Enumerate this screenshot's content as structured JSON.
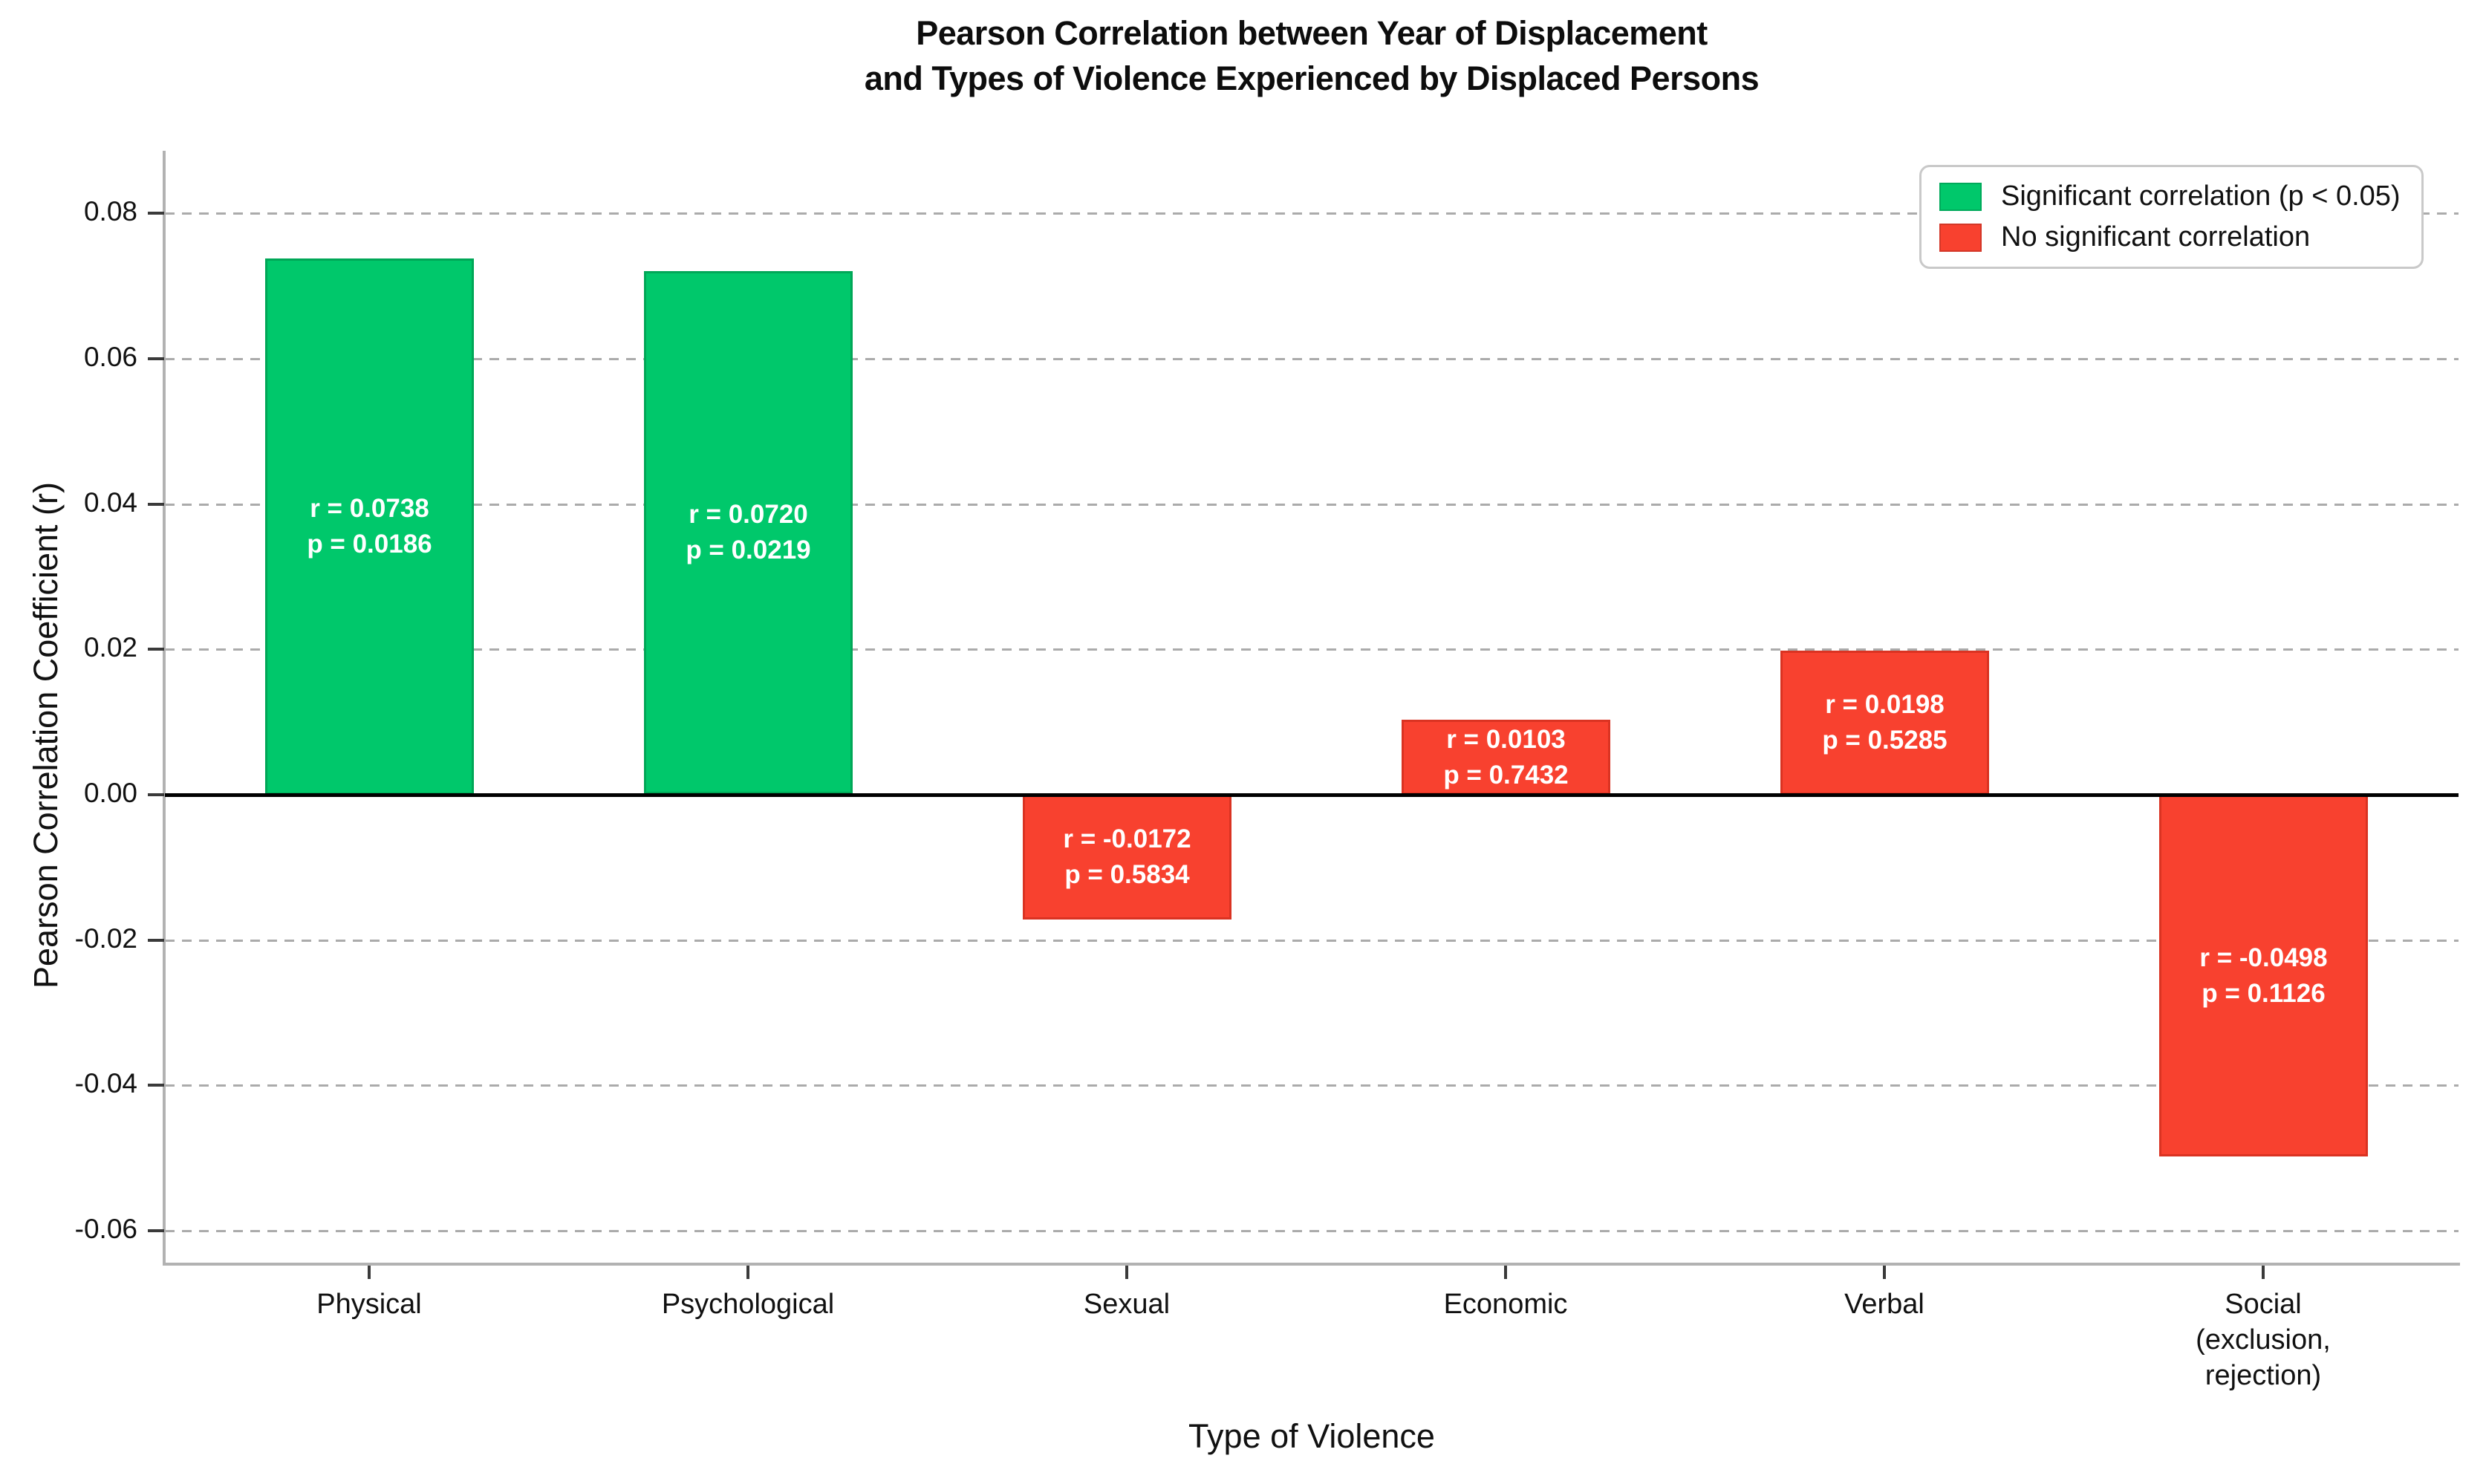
{
  "figure": {
    "title_line1": "Pearson Correlation between Year of Displacement",
    "title_line2": "and Types of Violence Experienced by Displaced Persons"
  },
  "chart_data": {
    "type": "bar",
    "title": "Pearson Correlation between Year of Displacement and Types of Violence Experienced by Displaced Persons",
    "xlabel": "Type of Violence",
    "ylabel": "Pearson Correlation Coefficient (r)",
    "categories": [
      "Physical",
      "Psychological",
      "Sexual",
      "Economic",
      "Verbal",
      "Social (exclusion, rejection)"
    ],
    "category_label_lines": [
      [
        "Physical"
      ],
      [
        "Psychological"
      ],
      [
        "Sexual"
      ],
      [
        "Economic"
      ],
      [
        "Verbal"
      ],
      [
        "Social",
        "(exclusion,",
        "rejection)"
      ]
    ],
    "series": [
      {
        "name": "Pearson r",
        "values": [
          0.0738,
          0.072,
          -0.0172,
          0.0103,
          0.0198,
          -0.0498
        ]
      },
      {
        "name": "p-value",
        "values": [
          0.0186,
          0.0219,
          0.5834,
          0.7432,
          0.5285,
          0.1126
        ]
      }
    ],
    "bars": [
      {
        "category": "Physical",
        "r": 0.0738,
        "p": 0.0186,
        "significant": true,
        "label_r": "r = 0.0738",
        "label_p": "p = 0.0186"
      },
      {
        "category": "Psychological",
        "r": 0.072,
        "p": 0.0219,
        "significant": true,
        "label_r": "r = 0.0720",
        "label_p": "p = 0.0219"
      },
      {
        "category": "Sexual",
        "r": -0.0172,
        "p": 0.5834,
        "significant": false,
        "label_r": "r = -0.0172",
        "label_p": "p = 0.5834"
      },
      {
        "category": "Economic",
        "r": 0.0103,
        "p": 0.7432,
        "significant": false,
        "label_r": "r = 0.0103",
        "label_p": "p = 0.7432"
      },
      {
        "category": "Verbal",
        "r": 0.0198,
        "p": 0.5285,
        "significant": false,
        "label_r": "r = 0.0198",
        "label_p": "p = 0.5285"
      },
      {
        "category": "Social (exclusion, rejection)",
        "r": -0.0498,
        "p": 0.1126,
        "significant": false,
        "label_r": "r = -0.0498",
        "label_p": "p = 0.1126"
      }
    ],
    "yticks": [
      0.08,
      0.06,
      0.04,
      0.02,
      0.0,
      -0.02,
      -0.04,
      -0.06
    ],
    "ytick_labels": [
      "0.08",
      "0.06",
      "0.04",
      "0.02",
      "0.00",
      "-0.02",
      "-0.04",
      "-0.06"
    ],
    "ylim": [
      -0.0646,
      0.0886
    ],
    "grid": "horizontal-dashed",
    "zero_line": true,
    "legend": {
      "position": "upper-right",
      "entries": [
        {
          "label": "Significant correlation (p < 0.05)",
          "color": "#00C86B"
        },
        {
          "label": "No significant correlation",
          "color": "#F8412F"
        }
      ]
    },
    "colors": {
      "significant_fill": "#00C86B",
      "significant_edge": "#00A757",
      "not_significant_fill": "#F8412F",
      "not_significant_edge": "#DA3322",
      "zero_line": "#000000",
      "grid": "#ABABAB",
      "spine": "#B2B2B2",
      "bar_label_text": "#FFFFFF",
      "text": "#111111"
    }
  }
}
